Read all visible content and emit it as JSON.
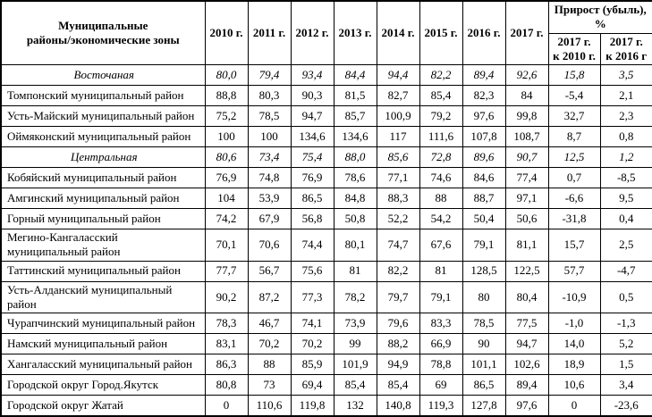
{
  "table": {
    "header": {
      "col1": "Муниципальные\nрайоны/экономические зоны",
      "years": [
        "2010 г.",
        "2011 г.",
        "2012 г.",
        "2013 г.",
        "2014 г.",
        "2015 г.",
        "2016 г.",
        "2017 г."
      ],
      "growth_title": "Прирост (убыль), %",
      "growth_cols": [
        "2017 г.\nк 2010 г.",
        "2017 г.\nк 2016 г"
      ]
    },
    "rows": [
      {
        "label": "Восточаная",
        "zone": true,
        "values": [
          "80,0",
          "79,4",
          "93,4",
          "84,4",
          "94,4",
          "82,2",
          "89,4",
          "92,6",
          "15,8",
          "3,5"
        ]
      },
      {
        "label": "Томпонский муниципальный район",
        "zone": false,
        "values": [
          "88,8",
          "80,3",
          "90,3",
          "81,5",
          "82,7",
          "85,4",
          "82,3",
          "84",
          "-5,4",
          "2,1"
        ]
      },
      {
        "label": "Усть-Майский муниципальный район",
        "zone": false,
        "values": [
          "75,2",
          "78,5",
          "94,7",
          "85,7",
          "100,9",
          "79,2",
          "97,6",
          "99,8",
          "32,7",
          "2,3"
        ]
      },
      {
        "label": "Оймяконский муниципальный район",
        "zone": false,
        "values": [
          "100",
          "100",
          "134,6",
          "134,6",
          "117",
          "111,6",
          "107,8",
          "108,7",
          "8,7",
          "0,8"
        ]
      },
      {
        "label": "Центральная",
        "zone": true,
        "values": [
          "80,6",
          "73,4",
          "75,4",
          "88,0",
          "85,6",
          "72,8",
          "89,6",
          "90,7",
          "12,5",
          "1,2"
        ]
      },
      {
        "label": "Кобяйский муниципальный район",
        "zone": false,
        "values": [
          "76,9",
          "74,8",
          "76,9",
          "78,6",
          "77,1",
          "74,6",
          "84,6",
          "77,4",
          "0,7",
          "-8,5"
        ]
      },
      {
        "label": "Амгинский муниципальный район",
        "zone": false,
        "values": [
          "104",
          "53,9",
          "86,5",
          "84,8",
          "88,3",
          "88",
          "88,7",
          "97,1",
          "-6,6",
          "9,5"
        ]
      },
      {
        "label": "Горный муниципальный район",
        "zone": false,
        "values": [
          "74,2",
          "67,9",
          "56,8",
          "50,8",
          "52,2",
          "54,2",
          "50,4",
          "50,6",
          "-31,8",
          "0,4"
        ]
      },
      {
        "label": "Мегино-Кангаласский муниципальный район",
        "zone": false,
        "values": [
          "70,1",
          "70,6",
          "74,4",
          "80,1",
          "74,7",
          "67,6",
          "79,1",
          "81,1",
          "15,7",
          "2,5"
        ]
      },
      {
        "label": "Таттинский муниципальный район",
        "zone": false,
        "values": [
          "77,7",
          "56,7",
          "75,6",
          "81",
          "82,2",
          "81",
          "128,5",
          "122,5",
          "57,7",
          "-4,7"
        ]
      },
      {
        "label": "Усть-Алданский муниципальный район",
        "zone": false,
        "values": [
          "90,2",
          "87,2",
          "77,3",
          "78,2",
          "79,7",
          "79,1",
          "80",
          "80,4",
          "-10,9",
          "0,5"
        ]
      },
      {
        "label": "Чурапчинский муниципальный район",
        "zone": false,
        "values": [
          "78,3",
          "46,7",
          "74,1",
          "73,9",
          "79,6",
          "83,3",
          "78,5",
          "77,5",
          "-1,0",
          "-1,3"
        ]
      },
      {
        "label": "Намский муниципальный район",
        "zone": false,
        "values": [
          "83,1",
          "70,2",
          "70,2",
          "99",
          "88,2",
          "66,9",
          "90",
          "94,7",
          "14,0",
          "5,2"
        ]
      },
      {
        "label": "Хангаласский муниципальный район",
        "zone": false,
        "values": [
          "86,3",
          "88",
          "85,9",
          "101,9",
          "94,9",
          "78,8",
          "101,1",
          "102,6",
          "18,9",
          "1,5"
        ]
      },
      {
        "label": "Городской округ Город.Якутск",
        "zone": false,
        "values": [
          "80,8",
          "73",
          "69,4",
          "85,4",
          "85,4",
          "69",
          "86,5",
          "89,4",
          "10,6",
          "3,4"
        ]
      },
      {
        "label": "Городской округ Жатай",
        "zone": false,
        "values": [
          "0",
          "110,6",
          "119,8",
          "132",
          "140,8",
          "119,3",
          "127,8",
          "97,6",
          "0",
          "-23,6"
        ]
      }
    ]
  }
}
